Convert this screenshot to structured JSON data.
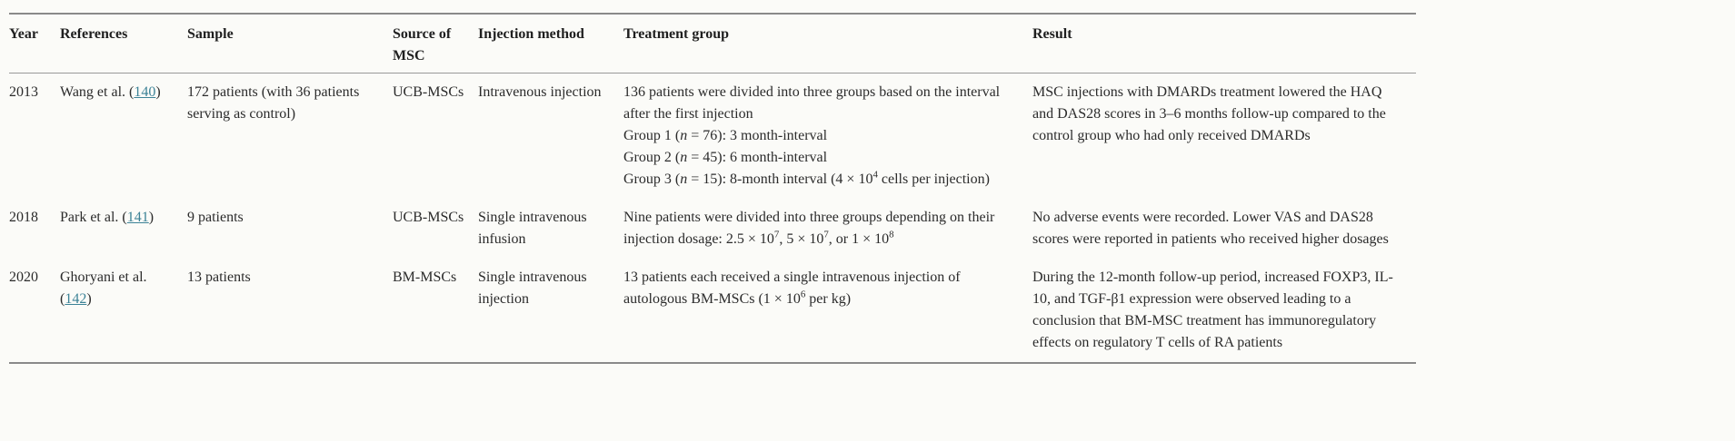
{
  "colors": {
    "background": "#fbfbf8",
    "text": "#2b2b2b",
    "link": "#3c8296",
    "rule": "#8a8a8a"
  },
  "table": {
    "columns": [
      "Year",
      "References",
      "Sample",
      "Source of MSC",
      "Injection method",
      "Treatment group",
      "Result"
    ],
    "rows": [
      {
        "year": "2013",
        "reference": {
          "pre": "Wang et al. (",
          "link": "140",
          "post": ")"
        },
        "sample": "172 patients (with 36 patients serving as control)",
        "source": "UCB-MSCs",
        "injection": "Intravenous injection",
        "treatment": [
          [
            {
              "t": "136 patients were divided into three groups based on the interval after the first injection"
            }
          ],
          [
            {
              "t": "Group 1 ("
            },
            {
              "i": "n"
            },
            {
              "t": " = 76): 3 month-interval"
            }
          ],
          [
            {
              "t": "Group 2 ("
            },
            {
              "i": "n"
            },
            {
              "t": " = 45): 6 month-interval"
            }
          ],
          [
            {
              "t": "Group 3 ("
            },
            {
              "i": "n"
            },
            {
              "t": " = 15): 8-month interval (4 × 10"
            },
            {
              "sup": "4"
            },
            {
              "t": " cells per injection)"
            }
          ]
        ],
        "result": "MSC injections with DMARDs treatment lowered the HAQ and DAS28 scores in 3–6 months follow-up compared to the control group who had only received DMARDs"
      },
      {
        "year": "2018",
        "reference": {
          "pre": "Park et al. (",
          "link": "141",
          "post": ")"
        },
        "sample": "9 patients",
        "source": "UCB-MSCs",
        "injection": "Single intravenous infusion",
        "treatment": [
          [
            {
              "t": "Nine patients were divided into three groups depending on their injection dosage: 2.5 × 10"
            },
            {
              "sup": "7"
            },
            {
              "t": ", 5 × 10"
            },
            {
              "sup": "7"
            },
            {
              "t": ", or 1 × 10"
            },
            {
              "sup": "8"
            }
          ]
        ],
        "result": "No adverse events were recorded. Lower VAS and DAS28 scores were reported in patients who received higher dosages"
      },
      {
        "year": "2020",
        "reference": {
          "pre": "Ghoryani et al. (",
          "link": "142",
          "post": ")"
        },
        "sample": "13 patients",
        "source": "BM-MSCs",
        "injection": "Single intravenous injection",
        "treatment": [
          [
            {
              "t": "13 patients each received a single intravenous injection of autologous BM-MSCs (1 × 10"
            },
            {
              "sup": "6"
            },
            {
              "t": " per kg)"
            }
          ]
        ],
        "result": "During the 12-month follow-up period, increased FOXP3, IL-10, and TGF-β1 expression were observed leading to a conclusion that BM-MSC treatment has immunoregulatory effects on regulatory T cells of RA patients"
      }
    ]
  }
}
